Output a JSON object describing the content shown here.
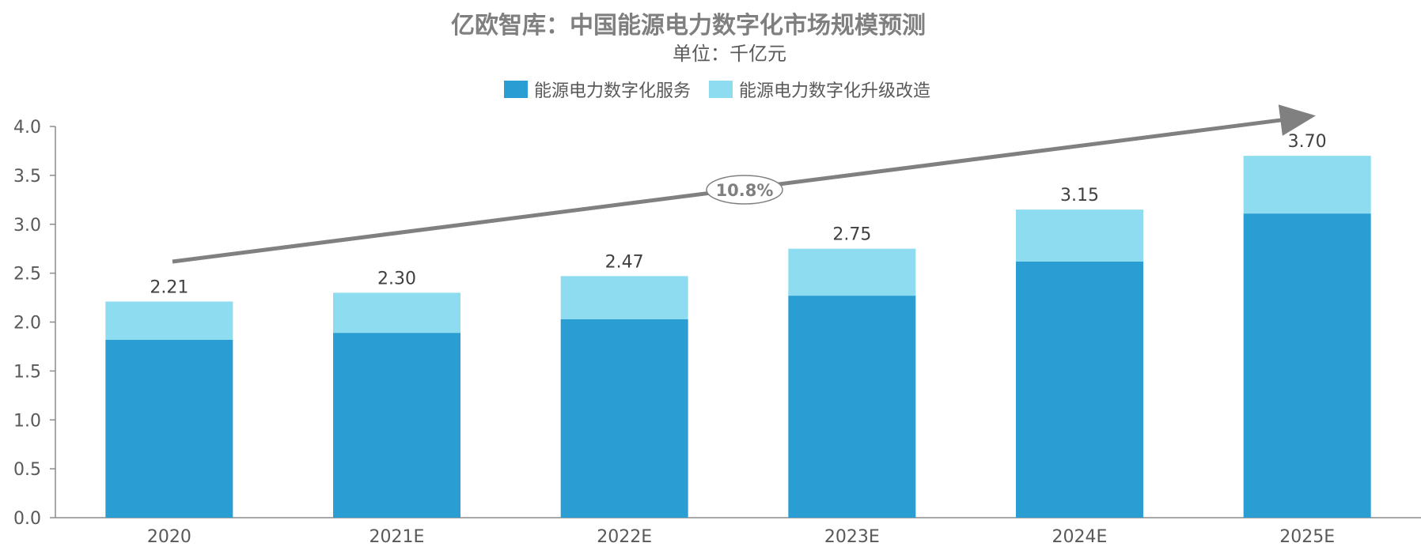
{
  "chart_data": {
    "type": "bar",
    "stacked": true,
    "title": "亿欧智库：中国能源电力数字化市场规模预测",
    "subtitle": "单位：千亿元",
    "categories": [
      "2020",
      "2021E",
      "2022E",
      "2023E",
      "2024E",
      "2025E"
    ],
    "series": [
      {
        "name": "能源电力数字化服务",
        "color": "#2A9ED3",
        "values": [
          1.82,
          1.89,
          2.03,
          2.27,
          2.62,
          3.11
        ]
      },
      {
        "name": "能源电力数字化升级改造",
        "color": "#8EDCEF",
        "values": [
          0.39,
          0.41,
          0.44,
          0.48,
          0.53,
          0.59
        ]
      }
    ],
    "totals": [
      "2.21",
      "2.30",
      "2.47",
      "2.75",
      "3.15",
      "3.70"
    ],
    "ylim": [
      0,
      4.0
    ],
    "yticks": [
      "0.0",
      "0.5",
      "1.0",
      "1.5",
      "2.0",
      "2.5",
      "3.0",
      "3.5",
      "4.0"
    ],
    "xlabel": "",
    "ylabel": "",
    "legend_position": "top-center",
    "annotation": {
      "type": "growth-arrow",
      "label": "10.8%"
    }
  }
}
